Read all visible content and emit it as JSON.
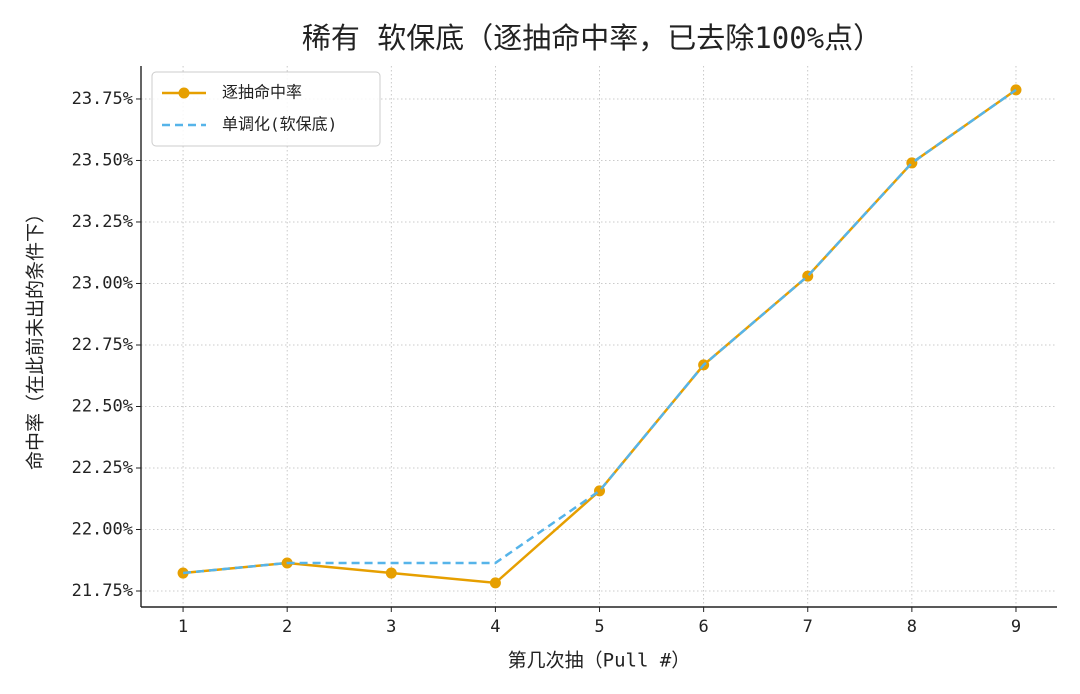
{
  "chart_data": {
    "type": "line",
    "title": "稀有 软保底（逐抽命中率，已去除100%点）",
    "x_label": "第几次抽（Pull #）",
    "y_label": "命中率（在此前未出的条件下）",
    "x": [
      1,
      2,
      3,
      4,
      5,
      6,
      7,
      8,
      9
    ],
    "series": [
      {
        "name": "逐抽命中率",
        "color": "#E69F00",
        "linestyle": "solid",
        "marker": "o",
        "values": [
          21.823,
          21.864,
          21.823,
          21.783,
          22.157,
          22.669,
          23.03,
          23.49,
          23.787
        ]
      },
      {
        "name": "单调化(软保底)",
        "color": "#56B4E9",
        "linestyle": "dashed",
        "marker": "none",
        "values": [
          21.823,
          21.864,
          21.864,
          21.864,
          22.157,
          22.669,
          23.03,
          23.49,
          23.787
        ]
      }
    ],
    "xlim": [
      0.596,
      9.394
    ],
    "xticks": [
      1,
      2,
      3,
      4,
      5,
      6,
      7,
      8,
      9
    ],
    "ylim": [
      21.685,
      23.884
    ],
    "yticks": [
      {
        "value": 21.75,
        "label": "21.75%"
      },
      {
        "value": 22.0,
        "label": "22.00%"
      },
      {
        "value": 22.25,
        "label": "22.25%"
      },
      {
        "value": 22.5,
        "label": "22.50%"
      },
      {
        "value": 22.75,
        "label": "22.75%"
      },
      {
        "value": 23.0,
        "label": "23.00%"
      },
      {
        "value": 23.25,
        "label": "23.25%"
      },
      {
        "value": 23.5,
        "label": "23.50%"
      },
      {
        "value": 23.75,
        "label": "23.75%"
      }
    ],
    "grid": true,
    "legend": "upper left"
  }
}
